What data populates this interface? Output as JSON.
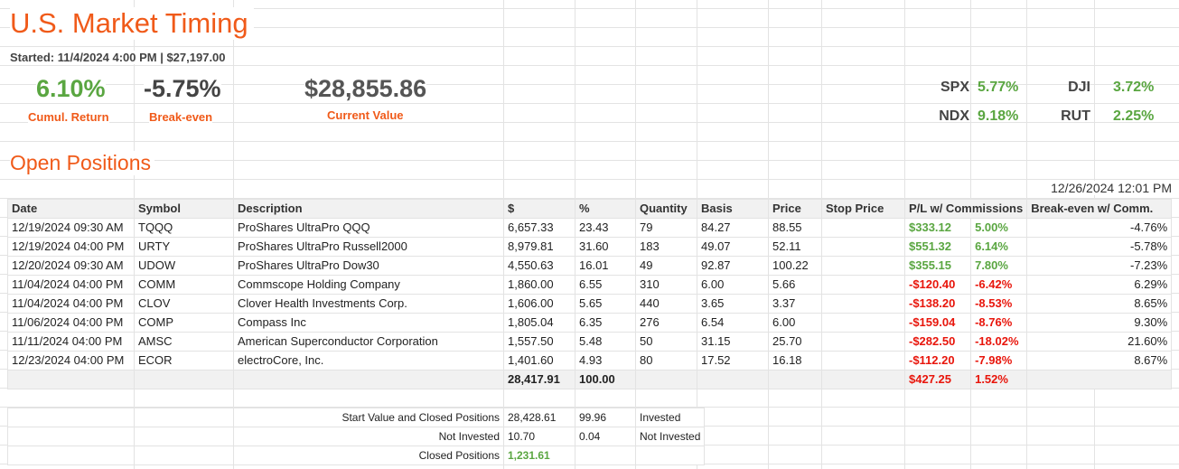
{
  "header": {
    "title": "U.S. Market Timing",
    "started": "Started: 11/4/2024 4:00 PM | $27,197.00"
  },
  "stats": {
    "cumul_return_value": "6.10%",
    "cumul_return_label": "Cumul. Return",
    "breakeven_value": "-5.75%",
    "breakeven_label": "Break-even",
    "current_value": "$28,855.86",
    "current_value_label": "Current Value"
  },
  "indices": [
    {
      "name": "SPX",
      "value": "5.77%"
    },
    {
      "name": "DJI",
      "value": "3.72%"
    },
    {
      "name": "NDX",
      "value": "9.18%"
    },
    {
      "name": "RUT",
      "value": "2.25%"
    }
  ],
  "open_positions": {
    "title": "Open Positions",
    "timestamp": "12/26/2024 12:01 PM",
    "columns": [
      "Date",
      "Symbol",
      "Description",
      "$",
      "%",
      "Quantity",
      "Basis",
      "Price",
      "Stop Price",
      "P/L w/ Commissions",
      "Break-even w/ Comm."
    ],
    "rows": [
      {
        "date": "12/19/2024 09:30 AM",
        "symbol": "TQQQ",
        "description": "ProShares UltraPro QQQ",
        "dollars": "6,657.33",
        "pct": "23.43",
        "quantity": "79",
        "basis": "84.27",
        "price": "88.55",
        "stop": "",
        "pl": "$333.12",
        "pl_pct": "5.00%",
        "breakeven": "-4.76%"
      },
      {
        "date": "12/19/2024 04:00 PM",
        "symbol": "URTY",
        "description": "ProShares UltraPro Russell2000",
        "dollars": "8,979.81",
        "pct": "31.60",
        "quantity": "183",
        "basis": "49.07",
        "price": "52.11",
        "stop": "",
        "pl": "$551.32",
        "pl_pct": "6.14%",
        "breakeven": "-5.78%"
      },
      {
        "date": "12/20/2024 09:30 AM",
        "symbol": "UDOW",
        "description": "ProShares UltraPro Dow30",
        "dollars": "4,550.63",
        "pct": "16.01",
        "quantity": "49",
        "basis": "92.87",
        "price": "100.22",
        "stop": "",
        "pl": "$355.15",
        "pl_pct": "7.80%",
        "breakeven": "-7.23%"
      },
      {
        "date": "11/04/2024 04:00 PM",
        "symbol": "COMM",
        "description": "Commscope Holding Company",
        "dollars": "1,860.00",
        "pct": "6.55",
        "quantity": "310",
        "basis": "6.00",
        "price": "5.66",
        "stop": "",
        "pl": "-$120.40",
        "pl_pct": "-6.42%",
        "breakeven": "6.29%"
      },
      {
        "date": "11/04/2024 04:00 PM",
        "symbol": "CLOV",
        "description": "Clover Health Investments Corp.",
        "dollars": "1,606.00",
        "pct": "5.65",
        "quantity": "440",
        "basis": "3.65",
        "price": "3.37",
        "stop": "",
        "pl": "-$138.20",
        "pl_pct": "-8.53%",
        "breakeven": "8.65%"
      },
      {
        "date": "11/06/2024 04:00 PM",
        "symbol": "COMP",
        "description": "Compass Inc",
        "dollars": "1,805.04",
        "pct": "6.35",
        "quantity": "276",
        "basis": "6.54",
        "price": "6.00",
        "stop": "",
        "pl": "-$159.04",
        "pl_pct": "-8.76%",
        "breakeven": "9.30%"
      },
      {
        "date": "11/11/2024 04:00 PM",
        "symbol": "AMSC",
        "description": "American Superconductor Corporation",
        "dollars": "1,557.50",
        "pct": "5.48",
        "quantity": "50",
        "basis": "31.15",
        "price": "25.70",
        "stop": "",
        "pl": "-$282.50",
        "pl_pct": "-18.02%",
        "breakeven": "21.60%"
      },
      {
        "date": "12/23/2024 04:00 PM",
        "symbol": "ECOR",
        "description": "electroCore, Inc.",
        "dollars": "1,401.60",
        "pct": "4.93",
        "quantity": "80",
        "basis": "17.52",
        "price": "16.18",
        "stop": "",
        "pl": "-$112.20",
        "pl_pct": "-7.98%",
        "breakeven": "8.67%"
      }
    ],
    "total": {
      "dollars": "28,417.91",
      "pct": "100.00",
      "pl": "$427.25",
      "pl_pct": "1.52%"
    }
  },
  "summary": [
    {
      "label": "Start Value and Closed Positions",
      "value": "28,428.61",
      "pct": "99.96",
      "note": "Invested"
    },
    {
      "label": "Not Invested",
      "value": "10.70",
      "pct": "0.04",
      "note": "Not Invested"
    },
    {
      "label": "Closed Positions",
      "value": "1,231.61",
      "pct": "",
      "note": ""
    }
  ],
  "colors": {
    "accent": "#f05a19",
    "positive": "#5aa641",
    "negative": "#e8150b"
  }
}
